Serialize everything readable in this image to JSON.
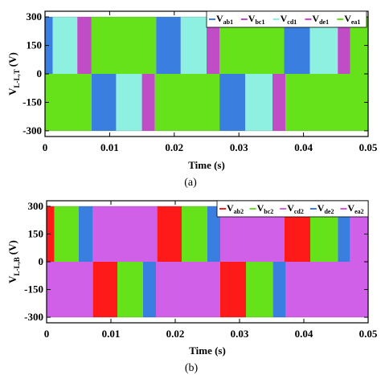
{
  "chart_data": [
    {
      "type": "area",
      "panel": "(a)",
      "ylabel": "V",
      "ylabel_sub": "L-L,T",
      "ylabel_unit": "(V)",
      "xlabel": "Time (s)",
      "xlim": [
        0,
        0.05
      ],
      "ylim": [
        -330,
        330
      ],
      "xticks": [
        "0",
        "0.01",
        "0.02",
        "0.03",
        "0.04",
        "0.05"
      ],
      "yticks": [
        "300",
        "150",
        "0",
        "-150",
        "-300"
      ],
      "legend_position": "top-right",
      "series": [
        {
          "name": "V",
          "sub": "ab1",
          "color": "#3a7fe0"
        },
        {
          "name": "V",
          "sub": "bc1",
          "color": "#c04dc6"
        },
        {
          "name": "V",
          "sub": "cd1",
          "color": "#8ef0e0"
        },
        {
          "name": "V",
          "sub": "de1",
          "color": "#e040d0"
        },
        {
          "name": "V",
          "sub": "ea1",
          "color": "#66e21a"
        }
      ],
      "segments_top": [
        {
          "x0": 0.0,
          "x1": 0.0012,
          "color": "#3a7fe0"
        },
        {
          "x0": 0.0012,
          "x1": 0.005,
          "color": "#8ef0e0"
        },
        {
          "x0": 0.005,
          "x1": 0.0072,
          "color": "#c04dc6"
        },
        {
          "x0": 0.0072,
          "x1": 0.0172,
          "color": "#66e21a"
        },
        {
          "x0": 0.0172,
          "x1": 0.021,
          "color": "#3a7fe0"
        },
        {
          "x0": 0.021,
          "x1": 0.025,
          "color": "#8ef0e0"
        },
        {
          "x0": 0.025,
          "x1": 0.027,
          "color": "#c04dc6"
        },
        {
          "x0": 0.027,
          "x1": 0.037,
          "color": "#66e21a"
        },
        {
          "x0": 0.037,
          "x1": 0.041,
          "color": "#3a7fe0"
        },
        {
          "x0": 0.041,
          "x1": 0.0453,
          "color": "#8ef0e0"
        },
        {
          "x0": 0.0453,
          "x1": 0.0472,
          "color": "#c04dc6"
        },
        {
          "x0": 0.0472,
          "x1": 0.05,
          "color": "#66e21a"
        }
      ],
      "segments_bottom": [
        {
          "x0": 0.0,
          "x1": 0.0072,
          "color": "#66e21a"
        },
        {
          "x0": 0.0072,
          "x1": 0.011,
          "color": "#3a7fe0"
        },
        {
          "x0": 0.011,
          "x1": 0.015,
          "color": "#8ef0e0"
        },
        {
          "x0": 0.015,
          "x1": 0.017,
          "color": "#c04dc6"
        },
        {
          "x0": 0.017,
          "x1": 0.027,
          "color": "#66e21a"
        },
        {
          "x0": 0.027,
          "x1": 0.031,
          "color": "#3a7fe0"
        },
        {
          "x0": 0.031,
          "x1": 0.0352,
          "color": "#8ef0e0"
        },
        {
          "x0": 0.0352,
          "x1": 0.0372,
          "color": "#c04dc6"
        },
        {
          "x0": 0.0372,
          "x1": 0.05,
          "color": "#66e21a"
        }
      ]
    },
    {
      "type": "area",
      "panel": "(b)",
      "ylabel": "V",
      "ylabel_sub": "L-L,B",
      "ylabel_unit": "(V)",
      "xlabel": "Time (s)",
      "xlim": [
        0,
        0.05
      ],
      "ylim": [
        -330,
        330
      ],
      "xticks": [
        "0",
        "0.01",
        "0.02",
        "0.03",
        "0.04",
        "0.05"
      ],
      "yticks": [
        "300",
        "150",
        "0",
        "-150",
        "-300"
      ],
      "legend_position": "top-right",
      "series": [
        {
          "name": "V",
          "sub": "ab2",
          "color": "#ff1a1a"
        },
        {
          "name": "V",
          "sub": "bc2",
          "color": "#66e21a"
        },
        {
          "name": "V",
          "sub": "cd2",
          "color": "#d060e8"
        },
        {
          "name": "V",
          "sub": "de2",
          "color": "#3a7fe0"
        },
        {
          "name": "V",
          "sub": "ea2",
          "color": "#e050d8"
        }
      ],
      "segments_top": [
        {
          "x0": 0.0,
          "x1": 0.0012,
          "color": "#ff1a1a"
        },
        {
          "x0": 0.0012,
          "x1": 0.005,
          "color": "#66e21a"
        },
        {
          "x0": 0.005,
          "x1": 0.0072,
          "color": "#3a7fe0"
        },
        {
          "x0": 0.0072,
          "x1": 0.0172,
          "color": "#d060e8"
        },
        {
          "x0": 0.0172,
          "x1": 0.021,
          "color": "#ff1a1a"
        },
        {
          "x0": 0.021,
          "x1": 0.025,
          "color": "#66e21a"
        },
        {
          "x0": 0.025,
          "x1": 0.027,
          "color": "#3a7fe0"
        },
        {
          "x0": 0.027,
          "x1": 0.037,
          "color": "#d060e8"
        },
        {
          "x0": 0.037,
          "x1": 0.041,
          "color": "#ff1a1a"
        },
        {
          "x0": 0.041,
          "x1": 0.0453,
          "color": "#66e21a"
        },
        {
          "x0": 0.0453,
          "x1": 0.0472,
          "color": "#3a7fe0"
        },
        {
          "x0": 0.0472,
          "x1": 0.05,
          "color": "#d060e8"
        }
      ],
      "segments_bottom": [
        {
          "x0": 0.0,
          "x1": 0.0072,
          "color": "#d060e8"
        },
        {
          "x0": 0.0072,
          "x1": 0.011,
          "color": "#ff1a1a"
        },
        {
          "x0": 0.011,
          "x1": 0.015,
          "color": "#66e21a"
        },
        {
          "x0": 0.015,
          "x1": 0.017,
          "color": "#3a7fe0"
        },
        {
          "x0": 0.017,
          "x1": 0.027,
          "color": "#d060e8"
        },
        {
          "x0": 0.027,
          "x1": 0.031,
          "color": "#ff1a1a"
        },
        {
          "x0": 0.031,
          "x1": 0.0352,
          "color": "#66e21a"
        },
        {
          "x0": 0.0352,
          "x1": 0.0372,
          "color": "#3a7fe0"
        },
        {
          "x0": 0.0372,
          "x1": 0.05,
          "color": "#d060e8"
        }
      ]
    }
  ]
}
